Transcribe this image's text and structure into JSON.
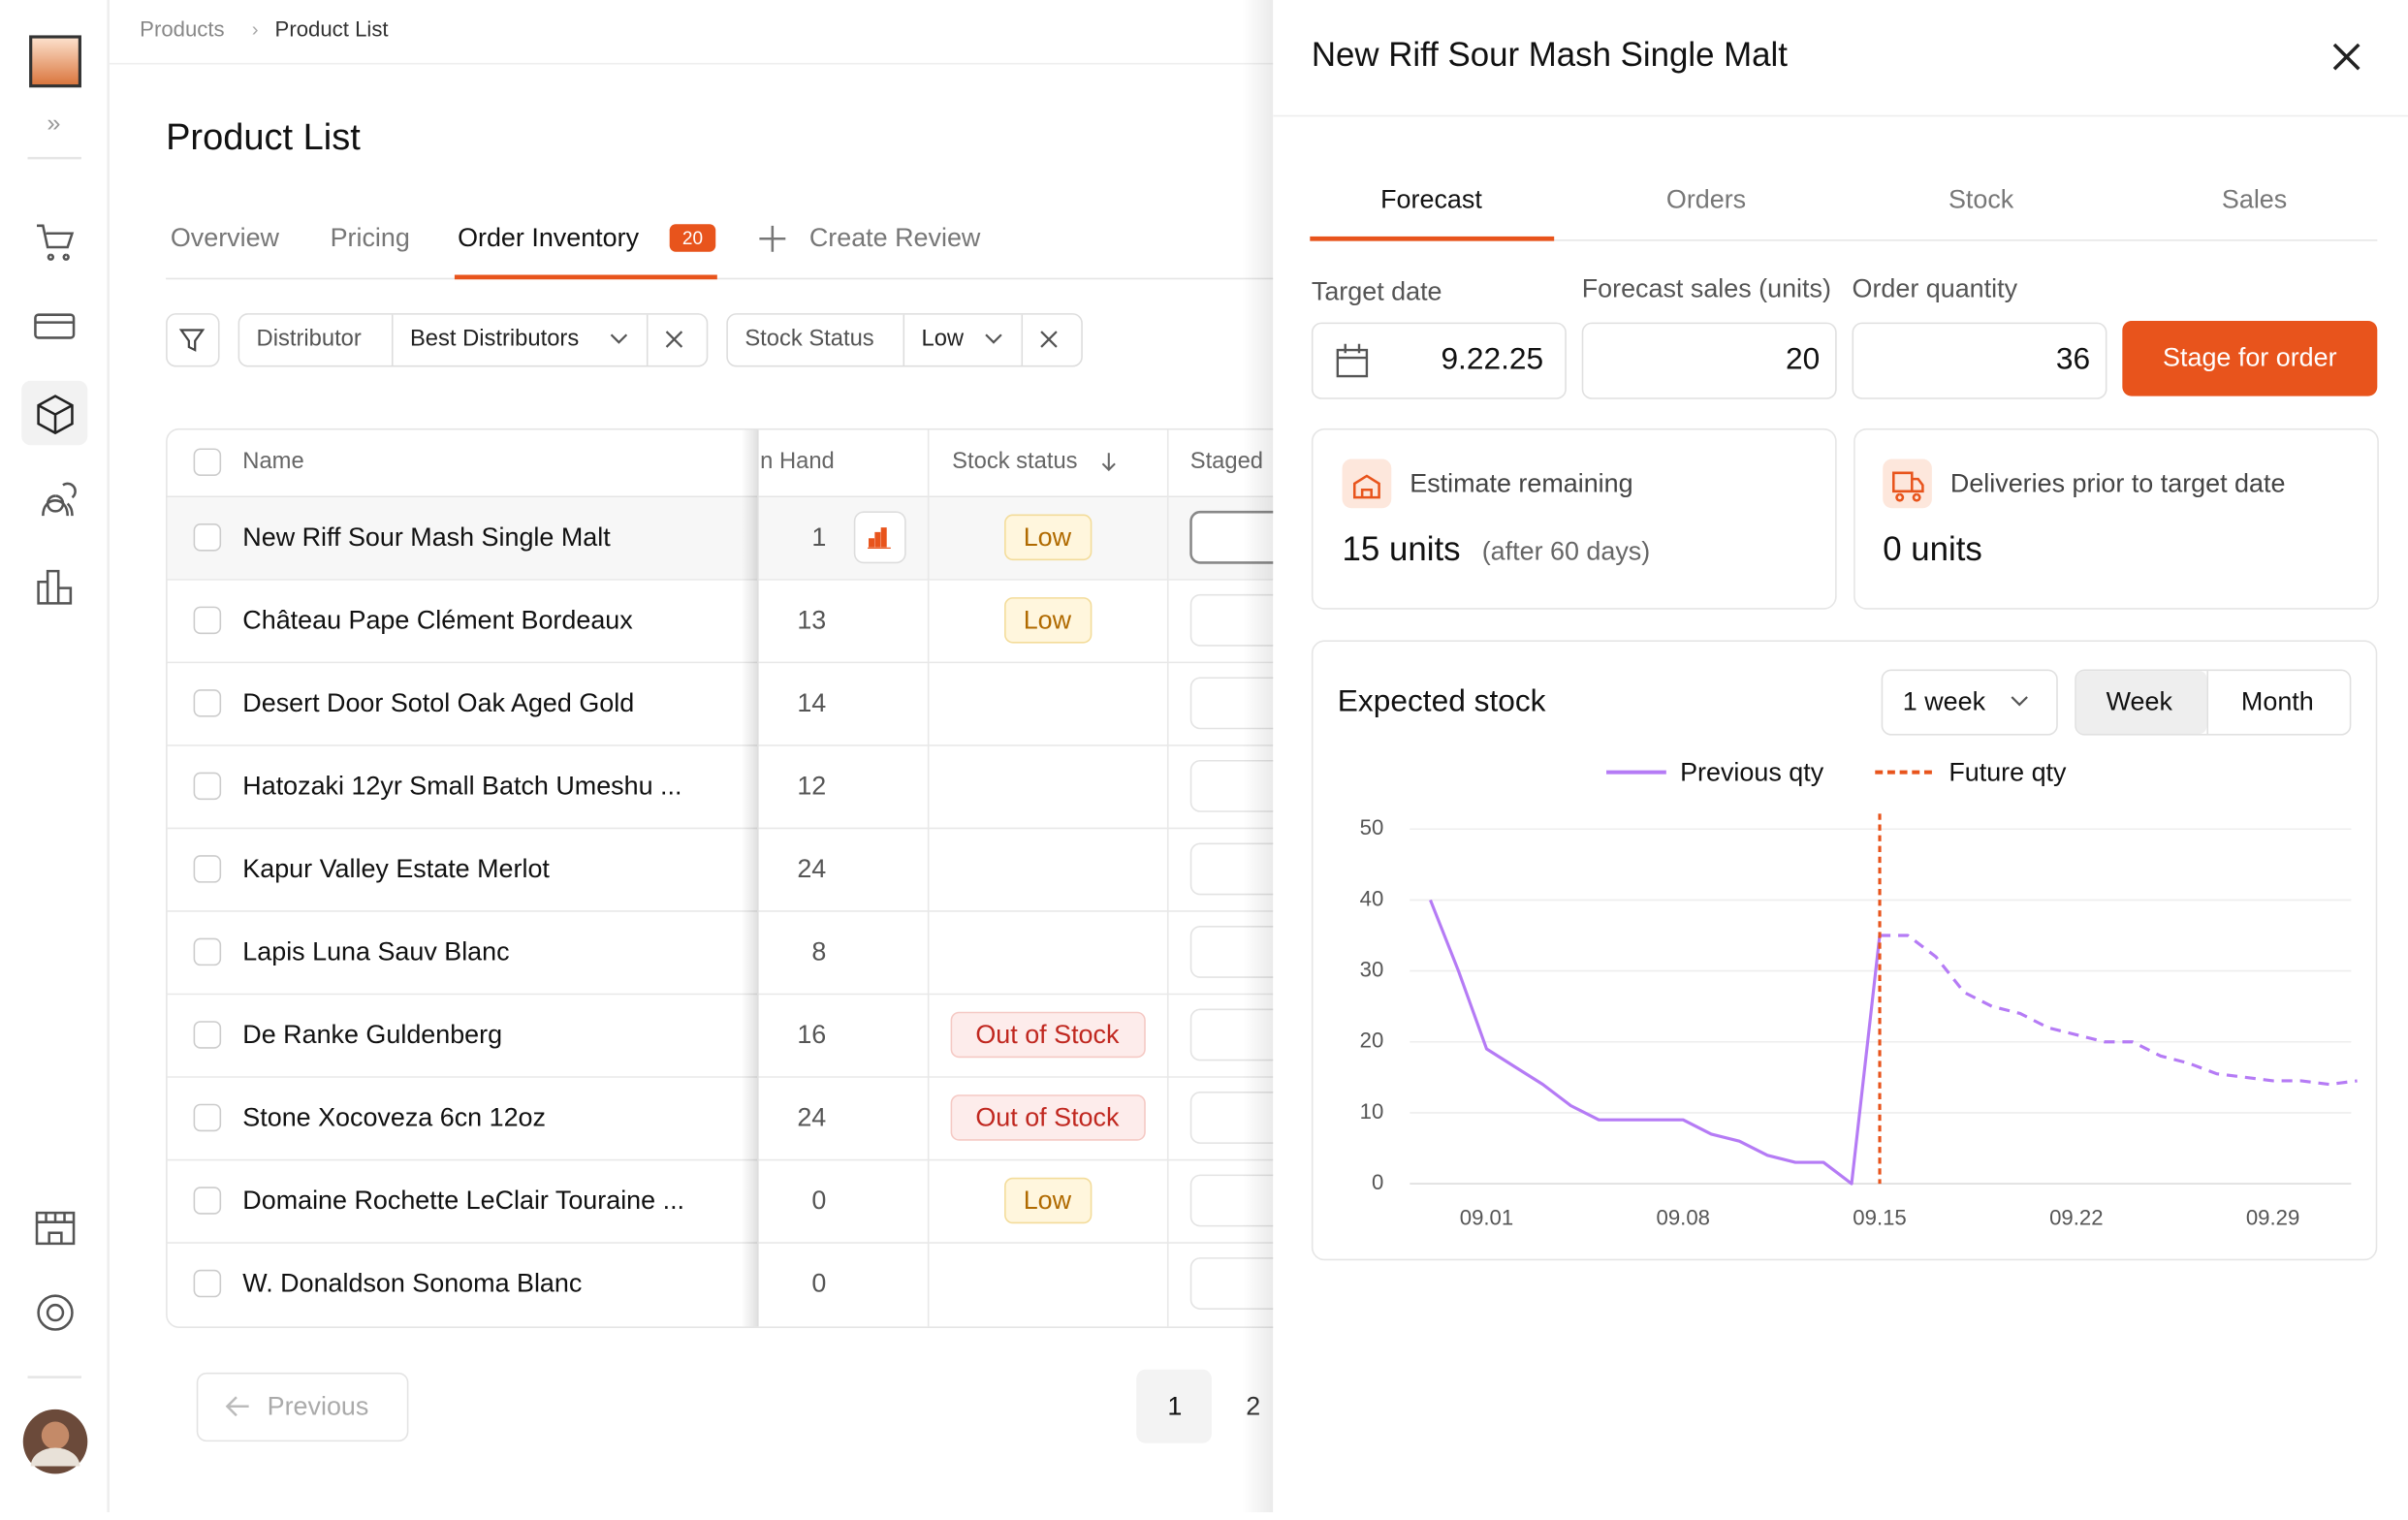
{
  "breadcrumb": [
    "Products",
    "Product List"
  ],
  "page_title": "Product List",
  "tabs": [
    {
      "label": "Overview"
    },
    {
      "label": "Pricing"
    },
    {
      "label": "Order Inventory",
      "badge": 20
    },
    {
      "label": "Create Review"
    }
  ],
  "filters": [
    {
      "label": "Distributor",
      "value": "Best Distributors"
    },
    {
      "label": "Stock Status",
      "value": "Low"
    }
  ],
  "table": {
    "columns": [
      "Name",
      "n Hand",
      "Stock status",
      "Staged"
    ],
    "rows": [
      {
        "name": "New Riff Sour Mash Single Malt",
        "on_hand": 1,
        "status": "Low"
      },
      {
        "name": "Château Pape Clément Bordeaux",
        "on_hand": 13,
        "status": "Low"
      },
      {
        "name": "Desert Door Sotol Oak Aged Gold",
        "on_hand": 14
      },
      {
        "name": "Hatozaki 12yr Small Batch Umeshu ...",
        "on_hand": 12
      },
      {
        "name": "Kapur Valley Estate Merlot",
        "on_hand": 24
      },
      {
        "name": "Lapis Luna Sauv Blanc",
        "on_hand": 8
      },
      {
        "name": "De Ranke Guldenberg",
        "on_hand": 16,
        "status": "Out of Stock"
      },
      {
        "name": "Stone Xocoveza 6cn 12oz",
        "on_hand": 24,
        "status": "Out of Stock"
      },
      {
        "name": "Domaine Rochette LeClair Touraine ...",
        "on_hand": 0,
        "status": "Low"
      },
      {
        "name": "W. Donaldson Sonoma Blanc",
        "on_hand": 0
      }
    ]
  },
  "pagination": {
    "previous": "Previous",
    "pages": [
      1,
      2
    ]
  },
  "panel": {
    "title": "New Riff Sour Mash Single Malt",
    "tabs": [
      "Forecast",
      "Orders",
      "Stock",
      "Sales"
    ],
    "fields": [
      {
        "label": "Target date",
        "value": "9.22.25"
      },
      {
        "label": "Forecast sales (units)",
        "value": 20
      },
      {
        "label": "Order quantity",
        "value": 36
      }
    ],
    "button": "Stage for order",
    "cards": [
      {
        "label": "Estimate remaining",
        "value": "15 units",
        "note": "(after 60 days)"
      },
      {
        "label": "Deliveries prior to target date",
        "value": "0 units"
      }
    ],
    "range_select": "1 week",
    "period_options": [
      "Week",
      "Month"
    ]
  },
  "chart_data": {
    "type": "line",
    "title": "Expected stock",
    "x": [
      "08.30",
      "08.31",
      "09.01",
      "09.02",
      "09.03",
      "09.04",
      "09.05",
      "09.06",
      "09.07",
      "09.08",
      "09.09",
      "09.10",
      "09.11",
      "09.12",
      "09.13",
      "09.14",
      "09.15",
      "09.16",
      "09.17",
      "09.18",
      "09.19",
      "09.20",
      "09.21",
      "09.22",
      "09.23",
      "09.24",
      "09.25",
      "09.26",
      "09.27",
      "09.28",
      "09.29",
      "09.30",
      "10.01",
      "10.02"
    ],
    "series": [
      {
        "name": "Previous qty",
        "color": "#b57bf5",
        "values": [
          40,
          30,
          19,
          16.5,
          14,
          11,
          9,
          9,
          9,
          9,
          7,
          6,
          4,
          3,
          3,
          0,
          35,
          null,
          null,
          null,
          null,
          null,
          null,
          null,
          null,
          null,
          null,
          null,
          null,
          null,
          null,
          null,
          null,
          null
        ]
      },
      {
        "name": "Future qty",
        "color": "#b57bf5",
        "dashed": true,
        "legend_color": "#e8541c",
        "values": [
          null,
          null,
          null,
          null,
          null,
          null,
          null,
          null,
          null,
          null,
          null,
          null,
          null,
          null,
          null,
          null,
          35,
          35,
          32,
          27,
          25,
          24,
          22,
          21,
          20,
          20,
          18,
          17,
          15.5,
          15,
          14.5,
          14.5,
          14,
          14.5
        ]
      }
    ],
    "marker_x": "09.15",
    "marker_color": "#e8541c",
    "ylim": [
      0,
      50
    ],
    "yticks": [
      0,
      10,
      20,
      30,
      40,
      50
    ],
    "xticks": [
      "09.01",
      "09.08",
      "09.15",
      "09.22",
      "09.29"
    ],
    "grid": true
  }
}
